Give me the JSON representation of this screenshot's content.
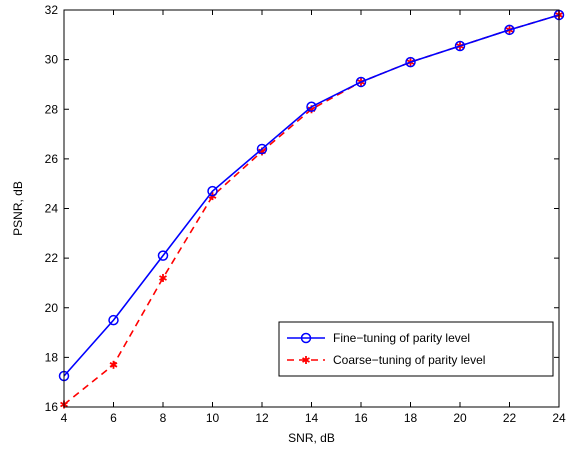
{
  "chart_data": {
    "type": "line",
    "title": "",
    "xlabel": "SNR, dB",
    "ylabel": "PSNR, dB",
    "xlim": [
      4,
      24
    ],
    "ylim": [
      16,
      32
    ],
    "xticks": [
      4,
      6,
      8,
      10,
      12,
      14,
      16,
      18,
      20,
      22,
      24
    ],
    "yticks": [
      16,
      18,
      20,
      22,
      24,
      26,
      28,
      30,
      32
    ],
    "grid": false,
    "legend_position": "bottom-right",
    "x": [
      4,
      6,
      8,
      10,
      12,
      14,
      16,
      18,
      20,
      22,
      24
    ],
    "series": [
      {
        "name": "Fine−tuning of parity level",
        "values": [
          17.25,
          19.5,
          22.1,
          24.7,
          26.4,
          28.1,
          29.1,
          29.9,
          30.55,
          31.2,
          31.8
        ],
        "color": "#0000ff",
        "line_style": "solid",
        "marker": "circle"
      },
      {
        "name": "Coarse−tuning of parity level",
        "values": [
          16.1,
          17.7,
          21.2,
          24.5,
          26.3,
          28.0,
          29.1,
          29.9,
          30.55,
          31.2,
          31.8
        ],
        "color": "#ff0000",
        "line_style": "dashed",
        "marker": "asterisk"
      }
    ]
  }
}
